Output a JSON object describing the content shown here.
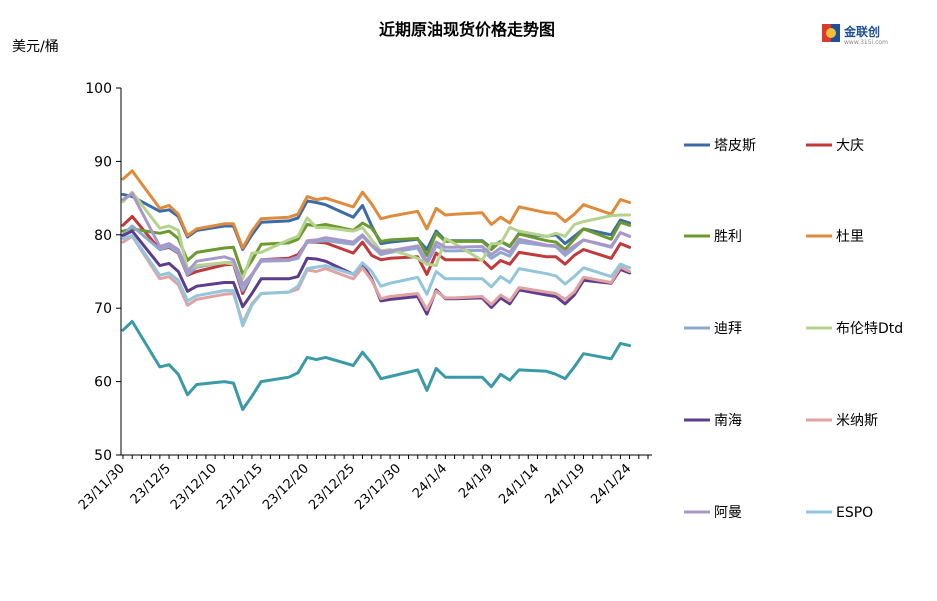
{
  "chart_data": {
    "type": "line",
    "title": "近期原油现货价格走势图",
    "ylabel": "美元/桶",
    "ylim": [
      50,
      100
    ],
    "yticks": [
      50,
      60,
      70,
      80,
      90,
      100
    ],
    "grid": false,
    "legend_position": "right",
    "x_tick_labels": [
      "23/11/30",
      "23/12/5",
      "23/12/10",
      "23/12/15",
      "23/12/20",
      "23/12/25",
      "23/12/30",
      "24/1/4",
      "24/1/9",
      "24/1/14",
      "24/1/19",
      "24/1/24"
    ],
    "x_tick_days": [
      0,
      5,
      10,
      15,
      20,
      25,
      30,
      35,
      40,
      45,
      50,
      55
    ],
    "x_days": [
      0,
      1,
      4,
      5,
      6,
      7,
      8,
      11,
      12,
      13,
      14,
      15,
      18,
      19,
      20,
      21,
      22,
      25,
      26,
      27,
      28,
      29,
      32,
      33,
      34,
      35,
      36,
      39,
      40,
      41,
      42,
      43,
      46,
      47,
      48,
      49,
      50,
      53,
      54,
      55
    ],
    "series": [
      {
        "name": "塔皮斯",
        "color": "#3d6aa8",
        "values": [
          85.5,
          85.2,
          83.2,
          83.4,
          82.5,
          79.7,
          80.6,
          81.2,
          81.2,
          78.0,
          80.0,
          81.7,
          81.9,
          82.3,
          84.6,
          84.4,
          84.1,
          82.4,
          84.0,
          81.2,
          78.8,
          79.0,
          79.4,
          78.0,
          80.5,
          79.2,
          79.2,
          79.2,
          78.2,
          79.1,
          78.4,
          80.2,
          79.8,
          80.0,
          78.8,
          79.8,
          80.8,
          80.0,
          82.0,
          81.6
        ]
      },
      {
        "name": "大庆",
        "color": "#c0393b",
        "values": [
          81.3,
          82.5,
          78.0,
          78.3,
          77.5,
          74.5,
          75.0,
          75.9,
          76.0,
          72.0,
          74.5,
          76.6,
          76.8,
          77.3,
          79.0,
          79.0,
          78.9,
          77.5,
          79.0,
          77.2,
          76.6,
          76.8,
          77.0,
          74.6,
          77.5,
          76.6,
          76.6,
          76.6,
          75.4,
          76.5,
          76.0,
          77.6,
          77.0,
          77.0,
          76.0,
          77.2,
          78.0,
          76.8,
          78.8,
          78.3
        ]
      },
      {
        "name": "胜利",
        "color": "#6b9a2f",
        "values": [
          80.5,
          80.8,
          80.2,
          80.5,
          79.5,
          76.5,
          77.6,
          78.2,
          78.3,
          74.6,
          76.5,
          78.7,
          78.9,
          79.4,
          81.4,
          81.2,
          81.4,
          80.6,
          81.6,
          80.9,
          79.1,
          79.3,
          79.5,
          77.2,
          80.2,
          79.1,
          79.1,
          79.1,
          78.0,
          79.1,
          78.5,
          80.1,
          79.2,
          79.0,
          78.0,
          79.4,
          80.8,
          79.4,
          81.7,
          81.3
        ]
      },
      {
        "name": "杜里",
        "color": "#e08a3b",
        "values": [
          87.6,
          88.7,
          83.6,
          84.0,
          82.8,
          79.9,
          80.8,
          81.5,
          81.5,
          78.2,
          80.5,
          82.2,
          82.4,
          82.8,
          85.2,
          84.8,
          85.0,
          83.8,
          85.8,
          84.2,
          82.2,
          82.5,
          83.2,
          80.8,
          83.6,
          82.7,
          82.8,
          83.0,
          81.4,
          82.4,
          81.6,
          83.8,
          83.0,
          82.9,
          81.8,
          82.8,
          84.1,
          82.8,
          84.8,
          84.4
        ]
      },
      {
        "name": "迪拜",
        "color": "#8ea8cf",
        "values": [
          80.0,
          81.2,
          78.0,
          78.4,
          77.6,
          74.6,
          75.6,
          76.2,
          76.2,
          72.4,
          74.5,
          76.4,
          76.5,
          76.8,
          79.0,
          79.1,
          79.2,
          78.7,
          79.8,
          78.5,
          77.3,
          77.6,
          78.2,
          76.0,
          78.5,
          77.8,
          77.8,
          77.9,
          76.8,
          77.6,
          77.1,
          79.0,
          78.5,
          78.4,
          77.2,
          78.2,
          79.3,
          78.3,
          80.3,
          79.8
        ]
      },
      {
        "name": "布伦特Dtd",
        "color": "#b6d38e",
        "values": [
          84.5,
          85.8,
          80.9,
          81.2,
          80.6,
          75.3,
          75.8,
          76.2,
          76.0,
          74.0,
          77.5,
          77.6,
          79.3,
          79.8,
          82.3,
          81.0,
          81.0,
          80.5,
          81.0,
          79.3,
          77.8,
          78.0,
          76.8,
          76.0,
          75.8,
          79.5,
          78.8,
          76.5,
          78.8,
          78.8,
          81.0,
          80.5,
          79.8,
          80.2,
          79.8,
          81.4,
          81.8,
          82.6,
          82.7,
          82.7
        ]
      },
      {
        "name": "南海",
        "color": "#5d3c8c",
        "values": [
          79.9,
          80.5,
          75.8,
          76.1,
          75.0,
          72.3,
          73.0,
          73.5,
          73.5,
          70.2,
          72.0,
          74.0,
          74.0,
          74.3,
          76.8,
          76.7,
          76.4,
          74.6,
          76.0,
          74.0,
          71.0,
          71.2,
          71.6,
          69.2,
          72.5,
          71.3,
          71.3,
          71.4,
          70.1,
          71.4,
          70.6,
          72.5,
          71.8,
          71.6,
          70.6,
          71.8,
          73.8,
          73.4,
          75.3,
          74.8
        ]
      },
      {
        "name": "米纳斯",
        "color": "#e0a3a3",
        "values": [
          79.0,
          79.8,
          74.0,
          74.3,
          73.2,
          70.4,
          71.2,
          71.9,
          72.0,
          68.0,
          70.6,
          72.0,
          72.2,
          72.6,
          75.2,
          75.0,
          75.4,
          74.0,
          75.5,
          73.8,
          71.3,
          71.6,
          72.0,
          69.8,
          72.3,
          71.4,
          71.4,
          71.6,
          70.5,
          71.8,
          71.0,
          72.8,
          72.2,
          72.0,
          71.2,
          72.2,
          74.2,
          73.5,
          75.6,
          75.0
        ]
      },
      {
        "name": "阿曼",
        "color": "#a898c9",
        "values": [
          84.8,
          85.6,
          78.4,
          78.8,
          78.0,
          75.0,
          76.4,
          77.0,
          76.6,
          73.2,
          74.6,
          76.6,
          76.6,
          77.0,
          79.2,
          79.3,
          79.6,
          79.0,
          80.0,
          78.6,
          77.7,
          77.8,
          78.5,
          76.4,
          79.0,
          78.3,
          78.3,
          78.4,
          77.3,
          78.2,
          77.6,
          79.4,
          78.6,
          78.5,
          77.6,
          78.5,
          79.3,
          78.4,
          80.3,
          79.8
        ]
      },
      {
        "name": "ESPO",
        "color": "#93c6db",
        "values": [
          79.5,
          79.9,
          74.5,
          74.8,
          73.8,
          71.0,
          71.7,
          72.4,
          72.4,
          67.6,
          70.4,
          72.0,
          72.2,
          73.0,
          75.4,
          75.6,
          75.8,
          74.6,
          76.2,
          75.0,
          73.0,
          73.4,
          74.2,
          71.9,
          75.0,
          74.0,
          74.0,
          74.0,
          72.9,
          74.3,
          73.5,
          75.4,
          74.7,
          74.4,
          73.3,
          74.3,
          75.5,
          74.3,
          76.0,
          75.5
        ]
      },
      {
        "name": "",
        "color": "#3a9aa6",
        "values": [
          67.0,
          68.2,
          62.0,
          62.3,
          61.0,
          58.2,
          59.6,
          60.0,
          59.8,
          56.2,
          58.0,
          60.0,
          60.6,
          61.2,
          63.3,
          63.0,
          63.3,
          62.2,
          64.0,
          62.5,
          60.4,
          60.7,
          61.6,
          58.8,
          61.8,
          60.6,
          60.6,
          60.6,
          59.3,
          61.0,
          60.2,
          61.6,
          61.4,
          61.0,
          60.4,
          62.0,
          63.8,
          63.1,
          65.2,
          64.9
        ]
      }
    ]
  },
  "logo": {
    "text": "金联创",
    "sub": "www.315i.com"
  }
}
